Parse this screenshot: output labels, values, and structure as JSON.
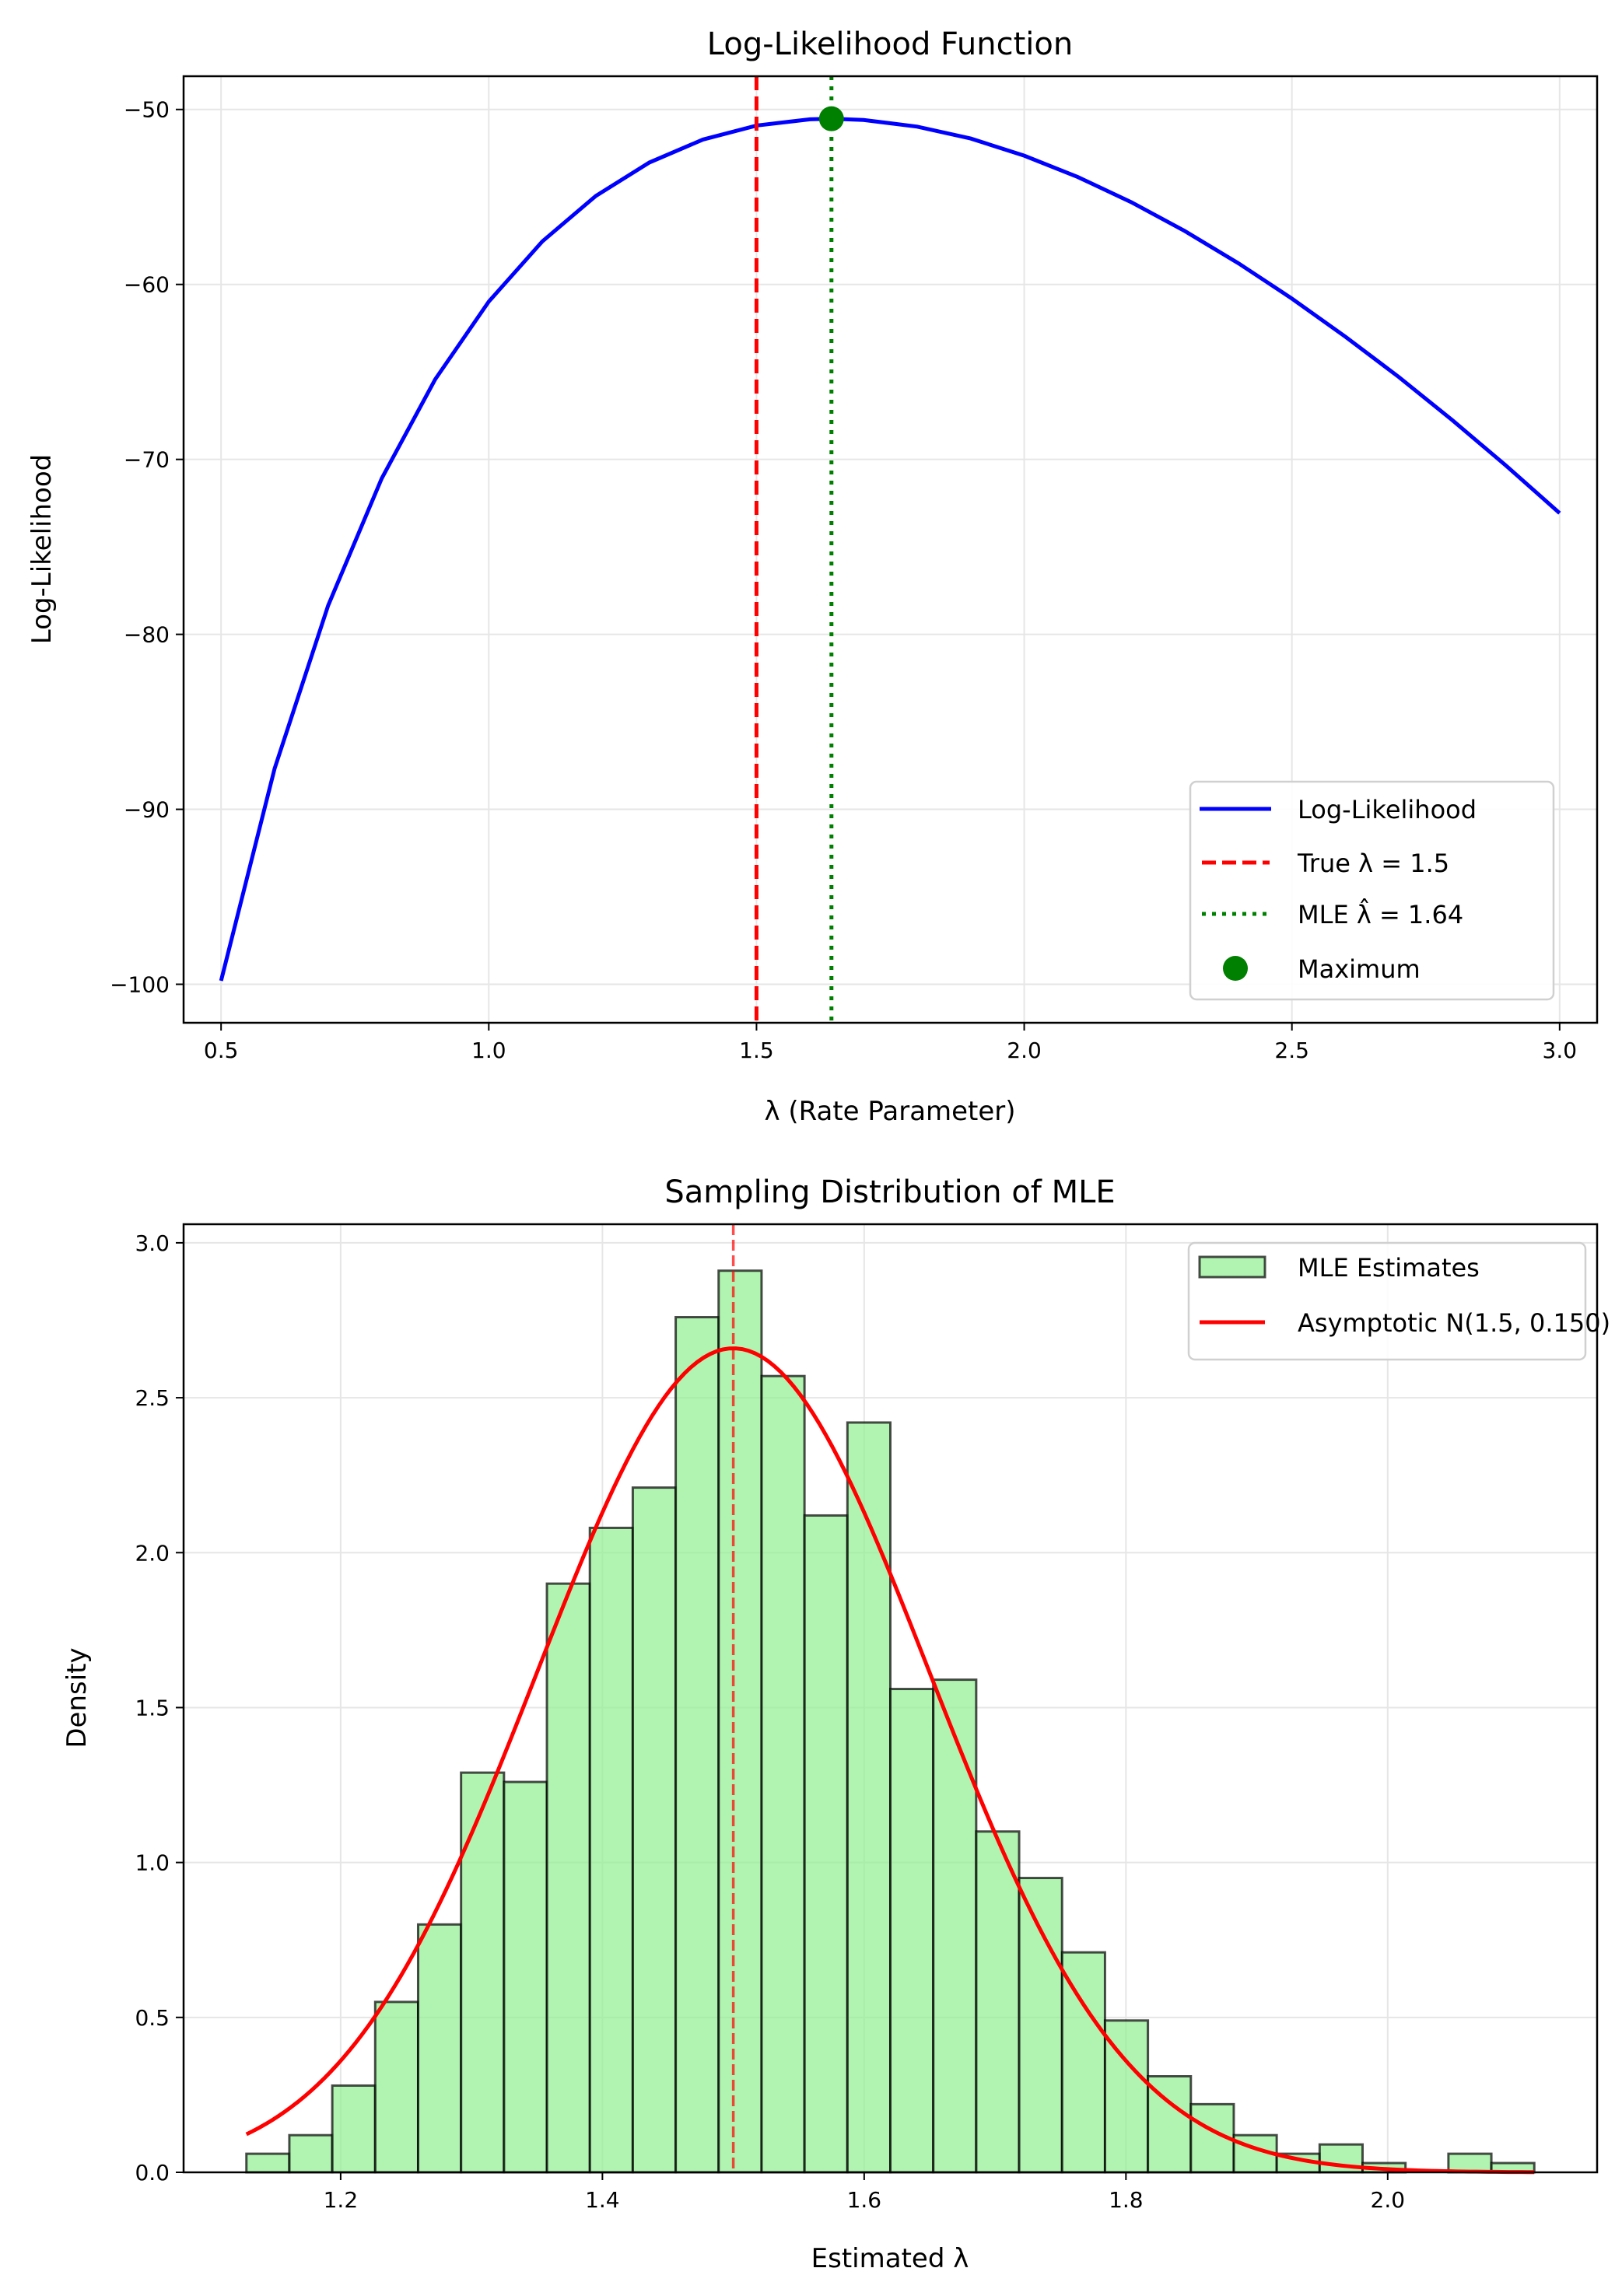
{
  "chart_data": [
    {
      "type": "line",
      "title": "Log-Likelihood Function",
      "xlabel": "λ (Rate Parameter)",
      "ylabel": "Log-Likelihood",
      "xlim": [
        0.43,
        3.07
      ],
      "ylim": [
        -102.2,
        -48.1
      ],
      "xticks": [
        0.5,
        1.0,
        1.5,
        2.0,
        2.5,
        3.0
      ],
      "xtick_labels": [
        "0.5",
        "1.0",
        "1.5",
        "2.0",
        "2.5",
        "3.0"
      ],
      "yticks": [
        -50,
        -60,
        -70,
        -80,
        -90,
        -100
      ],
      "ytick_labels": [
        "−50",
        "−60",
        "−70",
        "−80",
        "−90",
        "−100"
      ],
      "grid": true,
      "legend_position": "lower-right",
      "series": [
        {
          "name": "Log-Likelihood",
          "color": "#0000ff",
          "style": "solid",
          "x": [
            0.5,
            0.6,
            0.7,
            0.8,
            0.9,
            1.0,
            1.1,
            1.2,
            1.3,
            1.4,
            1.5,
            1.6,
            1.64,
            1.7,
            1.8,
            1.9,
            2.0,
            2.1,
            2.2,
            2.3,
            2.4,
            2.5,
            2.6,
            2.7,
            2.8,
            2.9,
            3.0
          ],
          "y": [
            -99.8,
            -87.67,
            -78.35,
            -71.09,
            -65.42,
            -60.98,
            -57.54,
            -54.94,
            -53.03,
            -51.72,
            -50.92,
            -50.56,
            -50.53,
            -50.6,
            -50.98,
            -51.66,
            -52.64,
            -53.86,
            -55.3,
            -56.95,
            -58.79,
            -60.81,
            -62.99,
            -65.3,
            -67.77,
            -70.36,
            -73.07
          ]
        },
        {
          "name": "True λ = 1.5",
          "color": "#ff0000",
          "style": "dashed",
          "vline": 1.5
        },
        {
          "name": "MLE λ̂ = 1.64",
          "color": "#008000",
          "style": "dotted",
          "vline": 1.64
        },
        {
          "name": "Maximum",
          "color": "#008000",
          "style": "marker",
          "x": 1.64,
          "y": -50.53
        }
      ]
    },
    {
      "type": "bar",
      "title": "Sampling Distribution of MLE",
      "xlabel": "Estimated λ",
      "ylabel": "Density",
      "xlim": [
        1.08,
        2.16
      ],
      "ylim": [
        0,
        3.06
      ],
      "xticks": [
        1.2,
        1.4,
        1.6,
        1.8,
        2.0
      ],
      "xtick_labels": [
        "1.2",
        "1.4",
        "1.6",
        "1.8",
        "2.0"
      ],
      "yticks": [
        0,
        0.5,
        1.0,
        1.5,
        2.0,
        2.5,
        3.0
      ],
      "ytick_labels": [
        "0.0",
        "0.5",
        "1.0",
        "1.5",
        "2.0",
        "2.5",
        "3.0"
      ],
      "grid": true,
      "legend_position": "top-right",
      "bin_start": 1.128,
      "bin_end": 2.112,
      "bar_color": "#90ee90",
      "values": [
        0.06,
        0.12,
        0.28,
        0.55,
        0.8,
        1.29,
        1.26,
        1.9,
        2.08,
        2.21,
        2.76,
        2.91,
        2.57,
        2.12,
        2.42,
        1.56,
        1.59,
        1.1,
        0.95,
        0.71,
        0.49,
        0.31,
        0.22,
        0.12,
        0.06,
        0.09,
        0.03,
        0.0,
        0.06,
        0.03
      ],
      "histogram_name": "MLE Estimates",
      "normal_curve": {
        "name": "Asymptotic N(1.5, 0.150)",
        "mean": 1.5,
        "sd": 0.15,
        "color": "#ff0000"
      },
      "vline": {
        "x": 1.5,
        "color": "#ff0000",
        "style": "dashed"
      }
    }
  ]
}
